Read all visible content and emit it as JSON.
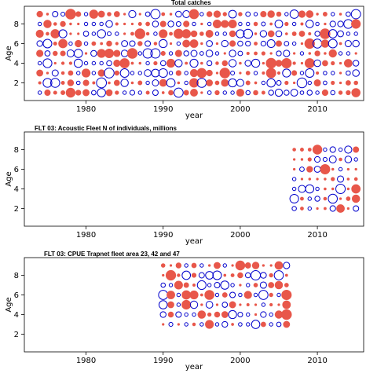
{
  "chart_data": [
    {
      "type": "bubble",
      "title": "Total catches",
      "xlabel": "year",
      "ylabel": "Age",
      "xlim": [
        1972,
        2016
      ],
      "ylim": [
        0.2,
        9.8
      ],
      "xticks": [
        1980,
        1990,
        2000,
        2010
      ],
      "yticks": [
        2,
        4,
        6,
        8
      ],
      "x_range": [
        1974,
        2015
      ],
      "ages": [
        1,
        2,
        3,
        4,
        5,
        6,
        7,
        8,
        9
      ],
      "positive_color": "#E8574A",
      "negative_color": "#0000CC",
      "legend": "none",
      "grid": false
    },
    {
      "type": "bubble",
      "title": "FLT 03: Acoustic Fleet   N of individuals, millions",
      "xlabel": "year",
      "ylabel": "Age",
      "xlim": [
        1972,
        2016
      ],
      "ylim": [
        0.2,
        9.8
      ],
      "xticks": [
        1980,
        1990,
        2000,
        2010
      ],
      "yticks": [
        2,
        4,
        6,
        8
      ],
      "x_range": [
        2007,
        2015
      ],
      "ages": [
        2,
        3,
        4,
        5,
        6,
        7,
        8
      ],
      "positive_color": "#E8574A",
      "negative_color": "#0000CC",
      "legend": "none",
      "grid": false
    },
    {
      "type": "bubble",
      "title": "FLT 03: CPUE Trapnet fleet area 23, 42 and 47",
      "xlabel": "year",
      "ylabel": "Age",
      "xlim": [
        1972,
        2016
      ],
      "ylim": [
        0.2,
        9.8
      ],
      "xticks": [
        1980,
        1990,
        2000,
        2010
      ],
      "yticks": [
        2,
        4,
        6,
        8
      ],
      "x_range": [
        1990,
        2006
      ],
      "ages": [
        3,
        4,
        5,
        6,
        7,
        8,
        9
      ],
      "positive_color": "#E8574A",
      "negative_color": "#0000CC",
      "legend": "none",
      "grid": false
    }
  ]
}
